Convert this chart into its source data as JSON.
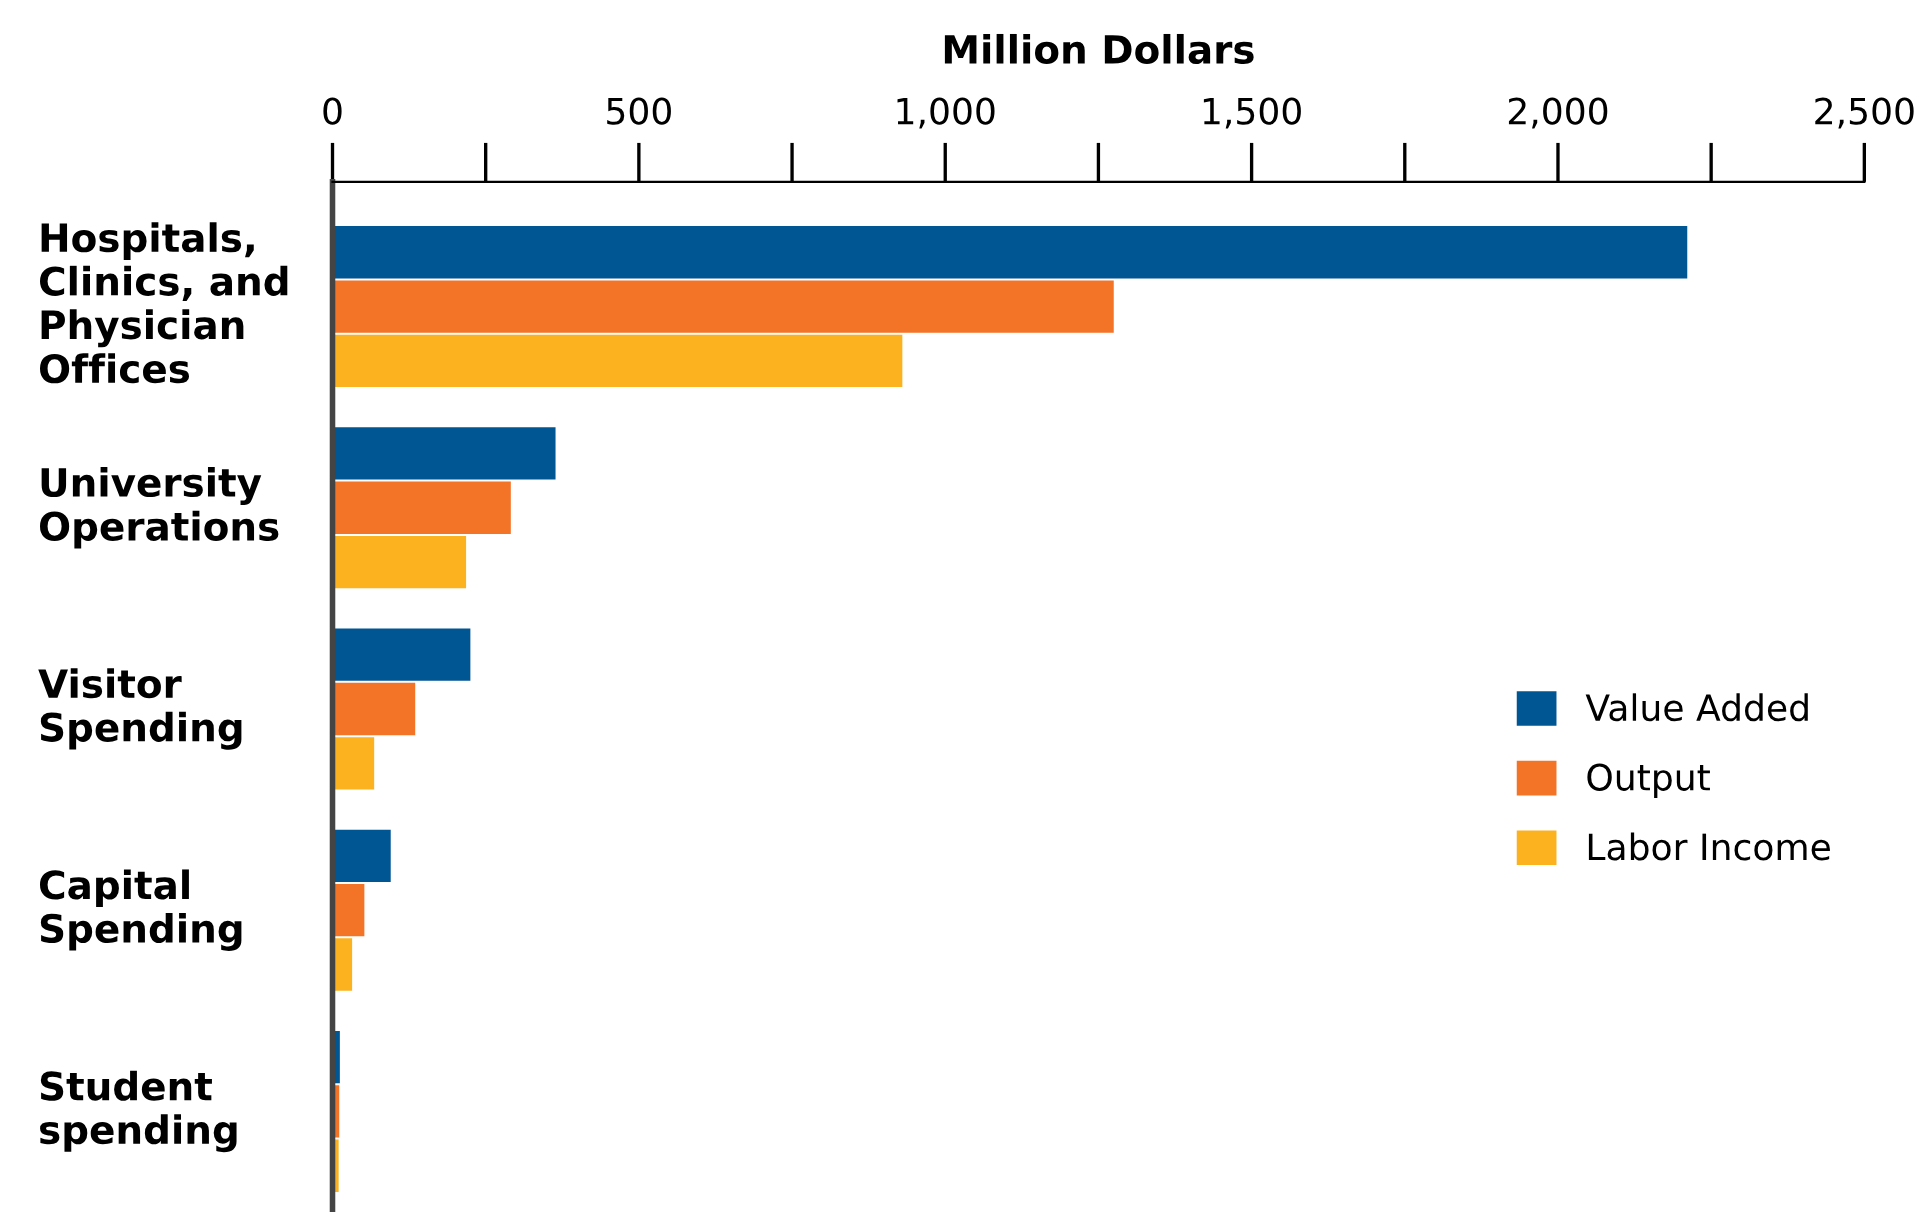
{
  "chart_data": {
    "type": "bar",
    "orientation": "horizontal",
    "xlabel": "Million Dollars",
    "categories": [
      "Hospitals,\nClinics, and\nPhysician\nOffices",
      "University\nOperations",
      "Visitor\nSpending",
      "Capital\nSpending",
      "Student\nspending"
    ],
    "series": [
      {
        "name": "Value Added",
        "color": "#005593",
        "values": [
          2211,
          364,
          225,
          95,
          12
        ]
      },
      {
        "name": "Output",
        "color": "#f37327",
        "values": [
          1275,
          291,
          135,
          52,
          11
        ]
      },
      {
        "name": "Labor Income",
        "color": "#fcb11e",
        "values": [
          930,
          218,
          68,
          32,
          10
        ]
      }
    ],
    "xlim": [
      0,
      2500
    ],
    "xticks": [
      0,
      {
        "value": 500,
        "label": "500"
      },
      {
        "value": 1000,
        "label": "1,000"
      },
      {
        "value": 1500,
        "label": "1,500"
      },
      {
        "value": 2000,
        "label": "2,000"
      },
      {
        "value": 2500,
        "label": "2,500"
      }
    ],
    "grid": false,
    "legend": "right"
  }
}
